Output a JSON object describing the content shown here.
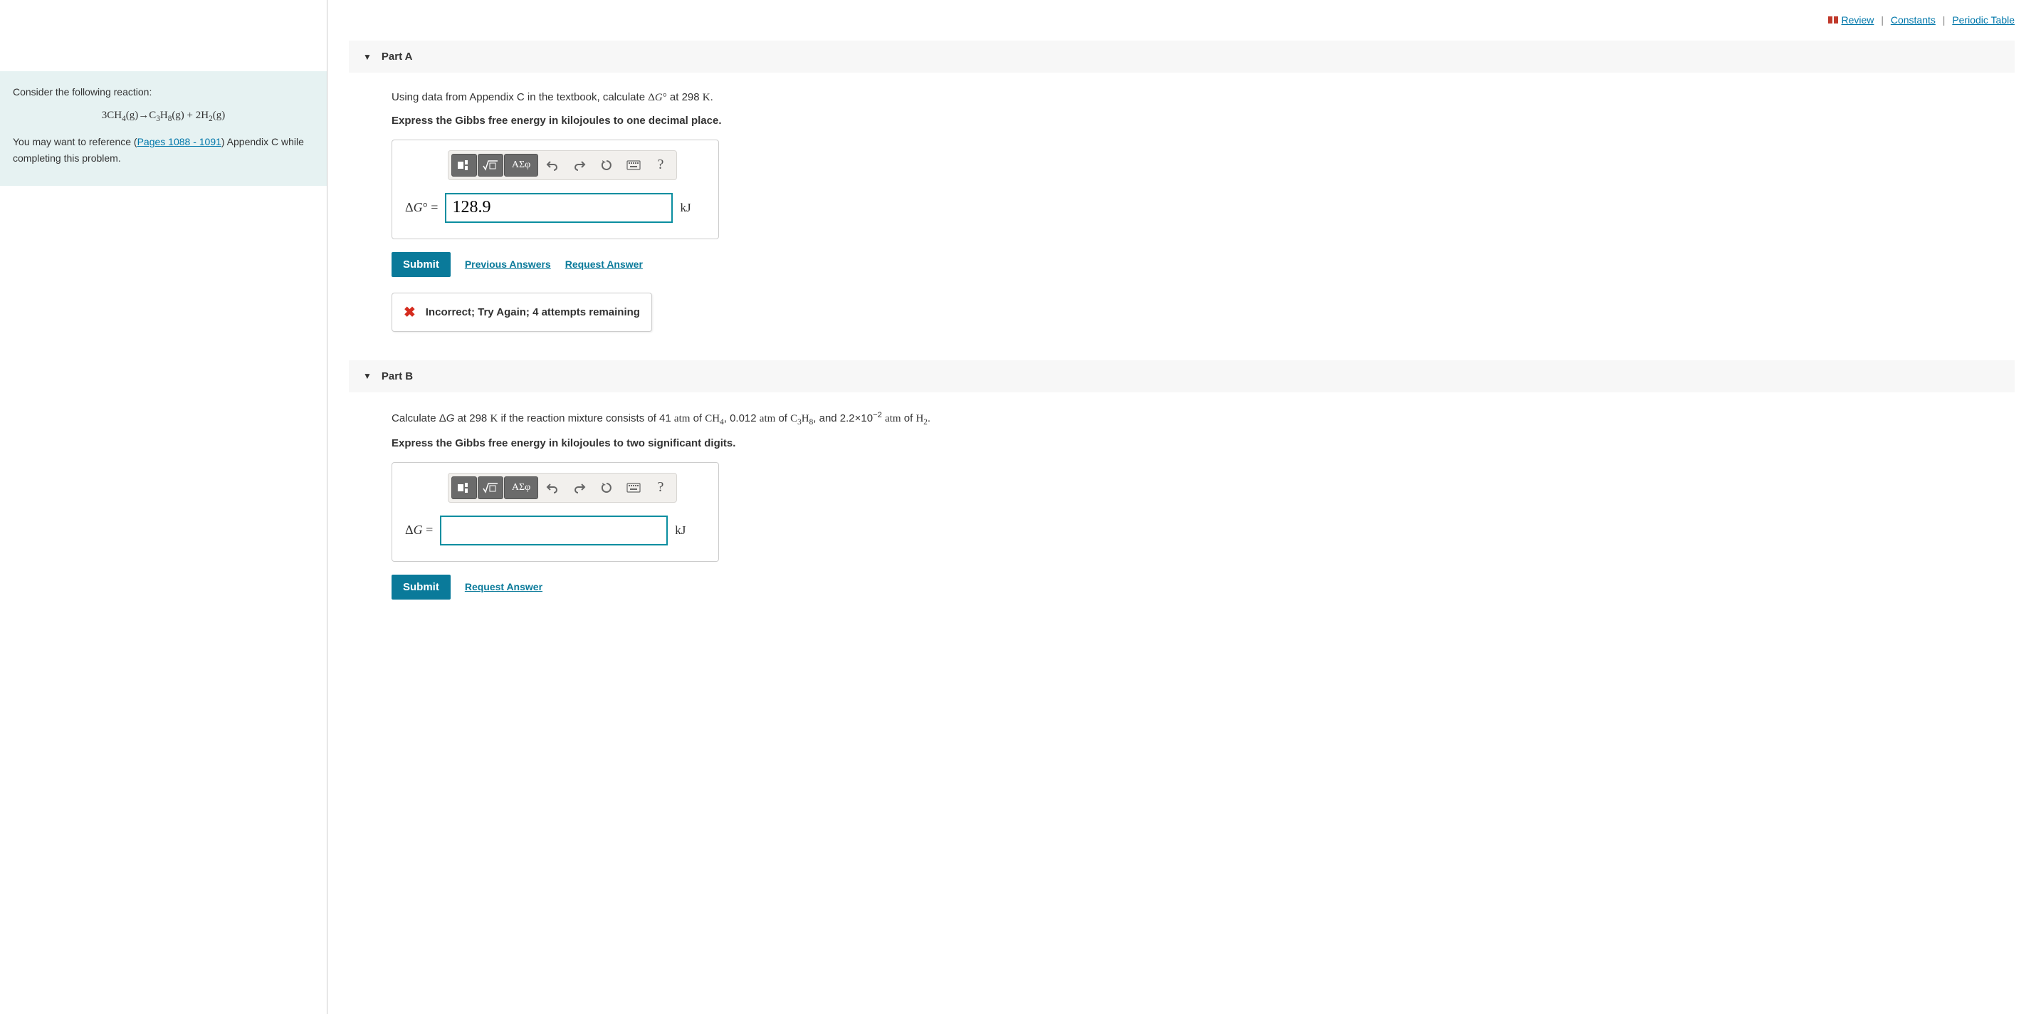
{
  "top_links": {
    "review": "Review",
    "constants": "Constants",
    "periodic_table": "Periodic Table"
  },
  "problem": {
    "intro": "Consider the following reaction:",
    "equation_html": "3CH<sub>4</sub>(g)→C<sub>3</sub>H<sub>8</sub>(g) + 2H<sub>2</sub>(g)",
    "ref_prefix": "You may want to reference (",
    "ref_link": "Pages 1088 - 1091",
    "ref_suffix": ") Appendix C while completing this problem."
  },
  "colors": {
    "panel_bg": "#e6f2f2",
    "link": "#0077aa",
    "submit_bg": "#0a7a9a",
    "input_border": "#0a8ea0",
    "error": "#d52b1e",
    "toolbar_bg": "#f2f0ed",
    "part_header_bg": "#f7f7f7"
  },
  "part_a": {
    "title": "Part A",
    "question_prefix": "Using data from Appendix C in the textbook, calculate ",
    "question_var_html": "Δ<i>G</i>°",
    "question_mid": " at 298 ",
    "question_unit": "K",
    "question_suffix": ".",
    "instruction": "Express the Gibbs free energy in kilojoules to one decimal place.",
    "answer_label_html": "Δ<i>G</i>° =",
    "answer_value": "128.9",
    "unit": "kJ",
    "submit": "Submit",
    "previous_answers": "Previous Answers",
    "request_answer": "Request Answer",
    "feedback": "Incorrect; Try Again; 4 attempts remaining"
  },
  "part_b": {
    "title": "Part B",
    "question_html": "Calculate Δ<i>G</i> at 298 <span class='serif'>K</span> if the reaction mixture consists of 41 <span class='serif'>atm</span> of <span class='serif'>CH<sub>4</sub></span>, 0.012 <span class='serif'>atm</span> of <span class='serif'>C<sub>3</sub>H<sub>8</sub></span>, and 2.2×10<sup>−2</sup> <span class='serif'>atm</span> of <span class='serif'>H<sub>2</sub></span>.",
    "instruction": "Express the Gibbs free energy in kilojoules to two significant digits.",
    "answer_label_html": "Δ<i>G</i> =",
    "answer_value": "",
    "unit": "kJ",
    "submit": "Submit",
    "request_answer": "Request Answer"
  },
  "toolbar": {
    "tooltips": {
      "templates": "Templates",
      "sqrt": "Square root / formula",
      "greek": "Greek characters",
      "undo": "Undo",
      "redo": "Redo",
      "reset": "Reset",
      "keyboard": "Keyboard shortcuts",
      "help": "Help"
    }
  }
}
